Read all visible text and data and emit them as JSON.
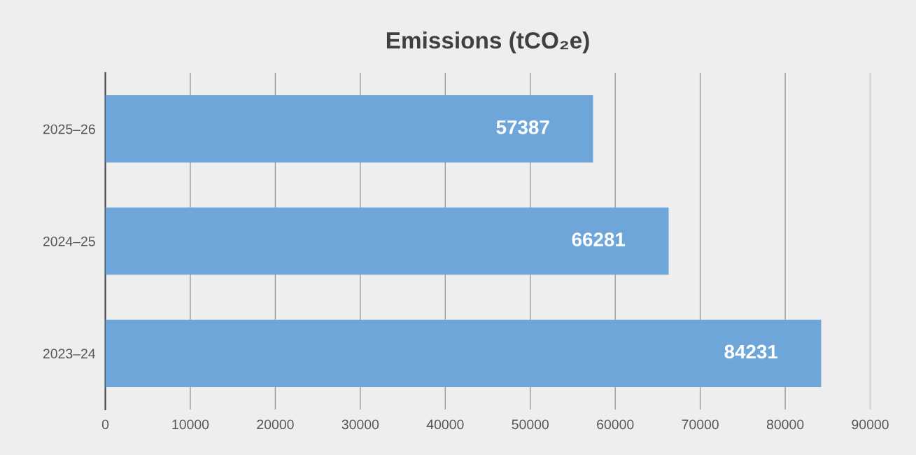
{
  "chart_data": {
    "type": "bar",
    "orientation": "horizontal",
    "title": "Emissions (tCO₂e)",
    "categories": [
      "2025–26",
      "2024–25",
      "2023–24"
    ],
    "values": [
      57387,
      66281,
      84231
    ],
    "color": "#6fa6d9",
    "xlim": [
      0,
      90000
    ],
    "xticks": [
      0,
      10000,
      20000,
      30000,
      40000,
      50000,
      60000,
      70000,
      80000,
      90000
    ],
    "grid": "x",
    "data_labels": true
  }
}
